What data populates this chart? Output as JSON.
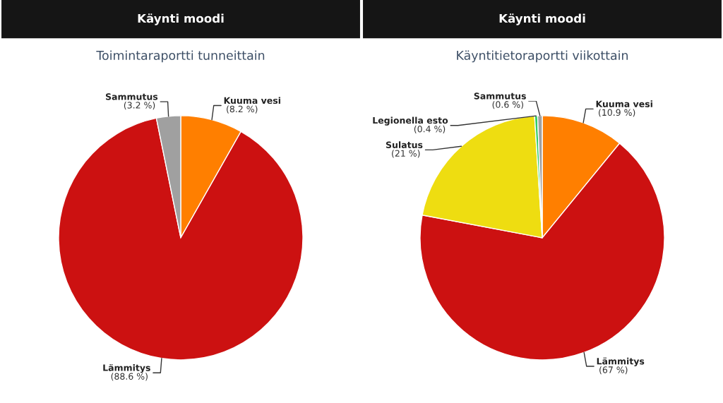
{
  "chart_data": [
    {
      "type": "pie",
      "title": "Käynti moodi",
      "subtitle": "Toimintaraportti tunneittain",
      "categories": [
        "Kuuma vesi",
        "Lämmitys",
        "Sammutus"
      ],
      "values": [
        8.2,
        88.6,
        3.2
      ],
      "value_labels": [
        "(8.2 %)",
        "(88.6 %)",
        "(3.2 %)"
      ],
      "colors": [
        "#ff7f00",
        "#cc1111",
        "#a0a0a0"
      ]
    },
    {
      "type": "pie",
      "title": "Käynti moodi",
      "subtitle": "Käyntitietoraportti viikottain",
      "categories": [
        "Kuuma vesi",
        "Lämmitys",
        "Sulatus",
        "Legionella esto",
        "Sammutus"
      ],
      "values": [
        10.9,
        67,
        21,
        0.4,
        0.6
      ],
      "value_labels": [
        "(10.9 %)",
        "(67 %)",
        "(21 %)",
        "(0.4 %)",
        "(0.6 %)"
      ],
      "colors": [
        "#ff7f00",
        "#cc1111",
        "#eedd11",
        "#33cc66",
        "#a0a0a0"
      ]
    }
  ]
}
